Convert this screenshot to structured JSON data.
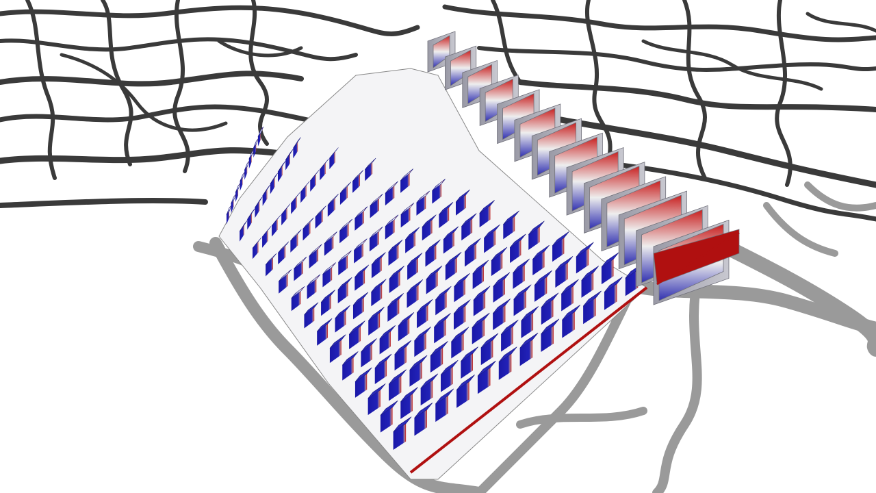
{
  "scene": {
    "background": "#ffffff",
    "road_color": "#3a3a3a",
    "near_road_color": "#9a9a9a",
    "building_colors": {
      "exposed": "#b01010",
      "mid": "#e8e8e8",
      "shaded": "#1010a0",
      "side": "#a8a8b0"
    },
    "icons": [
      "map-viewport",
      "road-network",
      "building-block",
      "tall-slab-building"
    ]
  }
}
